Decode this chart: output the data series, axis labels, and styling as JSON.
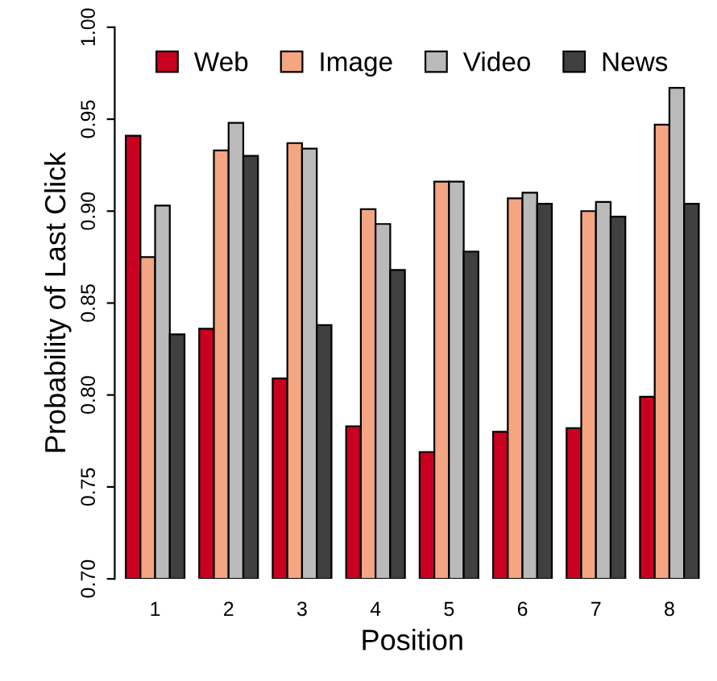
{
  "chart_data": {
    "type": "bar",
    "xlabel": "Position",
    "ylabel": "Probability of Last Click",
    "categories": [
      "1",
      "2",
      "3",
      "4",
      "5",
      "6",
      "7",
      "8"
    ],
    "series": [
      {
        "name": "Web",
        "color": "#ca0020",
        "values": [
          0.941,
          0.836,
          0.809,
          0.783,
          0.769,
          0.78,
          0.782,
          0.799
        ]
      },
      {
        "name": "Image",
        "color": "#f4a582",
        "values": [
          0.875,
          0.933,
          0.937,
          0.901,
          0.916,
          0.907,
          0.9,
          0.947
        ]
      },
      {
        "name": "Video",
        "color": "#bababa",
        "values": [
          0.903,
          0.948,
          0.934,
          0.893,
          0.916,
          0.91,
          0.905,
          0.967
        ]
      },
      {
        "name": "News",
        "color": "#404040",
        "values": [
          0.833,
          0.93,
          0.838,
          0.868,
          0.878,
          0.904,
          0.897,
          0.904
        ]
      }
    ],
    "ylim": [
      0.7,
      1.0
    ],
    "yticks": [
      {
        "value": 0.7,
        "label": "0.70"
      },
      {
        "value": 0.75,
        "label": "0.75"
      },
      {
        "value": 0.8,
        "label": "0.80"
      },
      {
        "value": 0.85,
        "label": "0.85"
      },
      {
        "value": 0.9,
        "label": "0.90"
      },
      {
        "value": 0.95,
        "label": "0.95"
      },
      {
        "value": 1.0,
        "label": "1.00"
      }
    ],
    "legend": "top",
    "grid": false
  }
}
